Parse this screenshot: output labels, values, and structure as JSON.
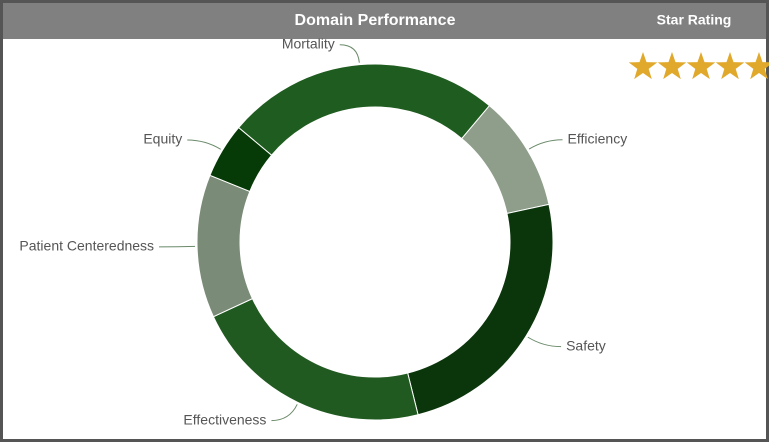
{
  "star_rating": {
    "label": "Star Rating",
    "value": 5
  },
  "chart_data": {
    "type": "donut",
    "title": "Domain Performance",
    "categories": [
      "Mortality",
      "Efficiency",
      "Safety",
      "Effectiveness",
      "Patient Centeredness",
      "Equity"
    ],
    "values": [
      25,
      10.5,
      24.5,
      22,
      13,
      5
    ],
    "colors": [
      "#1f5c1f",
      "#8e9e8b",
      "#0b360b",
      "#215a21",
      "#7a8b77",
      "#063a06"
    ]
  }
}
